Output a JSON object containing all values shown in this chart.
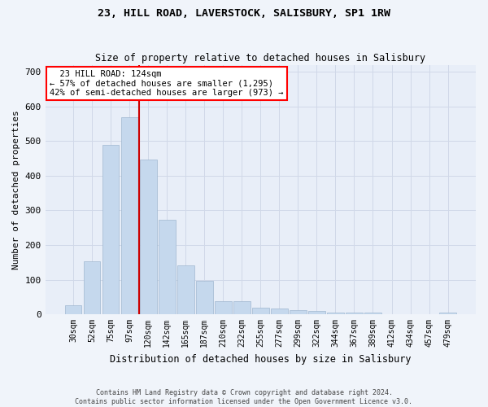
{
  "title": "23, HILL ROAD, LAVERSTOCK, SALISBURY, SP1 1RW",
  "subtitle": "Size of property relative to detached houses in Salisbury",
  "xlabel": "Distribution of detached houses by size in Salisbury",
  "ylabel": "Number of detached properties",
  "categories": [
    "30sqm",
    "52sqm",
    "75sqm",
    "97sqm",
    "120sqm",
    "142sqm",
    "165sqm",
    "187sqm",
    "210sqm",
    "232sqm",
    "255sqm",
    "277sqm",
    "299sqm",
    "322sqm",
    "344sqm",
    "367sqm",
    "389sqm",
    "412sqm",
    "434sqm",
    "457sqm",
    "479sqm"
  ],
  "values": [
    25,
    153,
    490,
    568,
    447,
    273,
    140,
    97,
    38,
    37,
    18,
    17,
    12,
    9,
    6,
    4,
    5,
    0,
    0,
    0,
    5
  ],
  "bar_color": "#c5d8ed",
  "bar_edge_color": "#a0b8d0",
  "grid_color": "#d0d8e8",
  "bg_color": "#e8eef8",
  "fig_bg_color": "#f0f4fa",
  "marker_bin": 4,
  "marker_color": "#cc0000",
  "annotation_line1": "  23 HILL ROAD: 124sqm  ",
  "annotation_line2": "← 57% of detached houses are smaller (1,295)",
  "annotation_line3": "42% of semi-detached houses are larger (973) →",
  "footer": "Contains HM Land Registry data © Crown copyright and database right 2024.\nContains public sector information licensed under the Open Government Licence v3.0.",
  "ylim": [
    0,
    720
  ],
  "yticks": [
    0,
    100,
    200,
    300,
    400,
    500,
    600,
    700
  ],
  "title_fontsize": 9.5,
  "subtitle_fontsize": 8.5,
  "tick_fontsize": 7,
  "ylabel_fontsize": 8,
  "xlabel_fontsize": 8.5,
  "footer_fontsize": 6
}
